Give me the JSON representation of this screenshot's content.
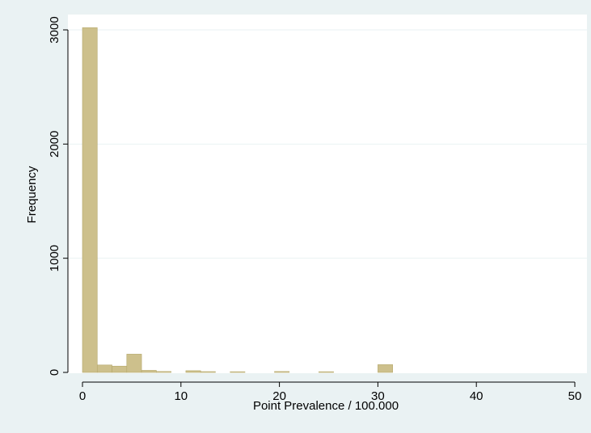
{
  "chart_data": {
    "type": "bar",
    "title": "",
    "xlabel": "Point Prevalence / 100.000",
    "ylabel": "Frequency",
    "xlim": [
      0,
      50
    ],
    "ylim": [
      0,
      3000
    ],
    "xticks": [
      0,
      10,
      20,
      30,
      40,
      50
    ],
    "xtick_labels": [
      "0",
      "10",
      "20",
      "30",
      "40",
      "50"
    ],
    "yticks": [
      0,
      1000,
      2000,
      3000
    ],
    "ytick_labels": [
      "0",
      "1000",
      "2000",
      "3000"
    ],
    "bin_width": 1.5,
    "bins": [
      {
        "x0": 0,
        "value": 3020
      },
      {
        "x0": 1.5,
        "value": 65
      },
      {
        "x0": 3.0,
        "value": 55
      },
      {
        "x0": 4.5,
        "value": 160
      },
      {
        "x0": 6.0,
        "value": 18
      },
      {
        "x0": 7.5,
        "value": 8
      },
      {
        "x0": 10.5,
        "value": 15
      },
      {
        "x0": 12.0,
        "value": 7
      },
      {
        "x0": 15.0,
        "value": 6
      },
      {
        "x0": 19.5,
        "value": 8
      },
      {
        "x0": 24.0,
        "value": 6
      },
      {
        "x0": 30.0,
        "value": 68
      }
    ],
    "grid": true,
    "colors": {
      "bar_fill": "#cdc08c",
      "bar_stroke": "#b5a86c",
      "plot_bg": "#ffffff",
      "page_bg": "#eaf2f3",
      "grid": "#eaf2f3"
    }
  }
}
